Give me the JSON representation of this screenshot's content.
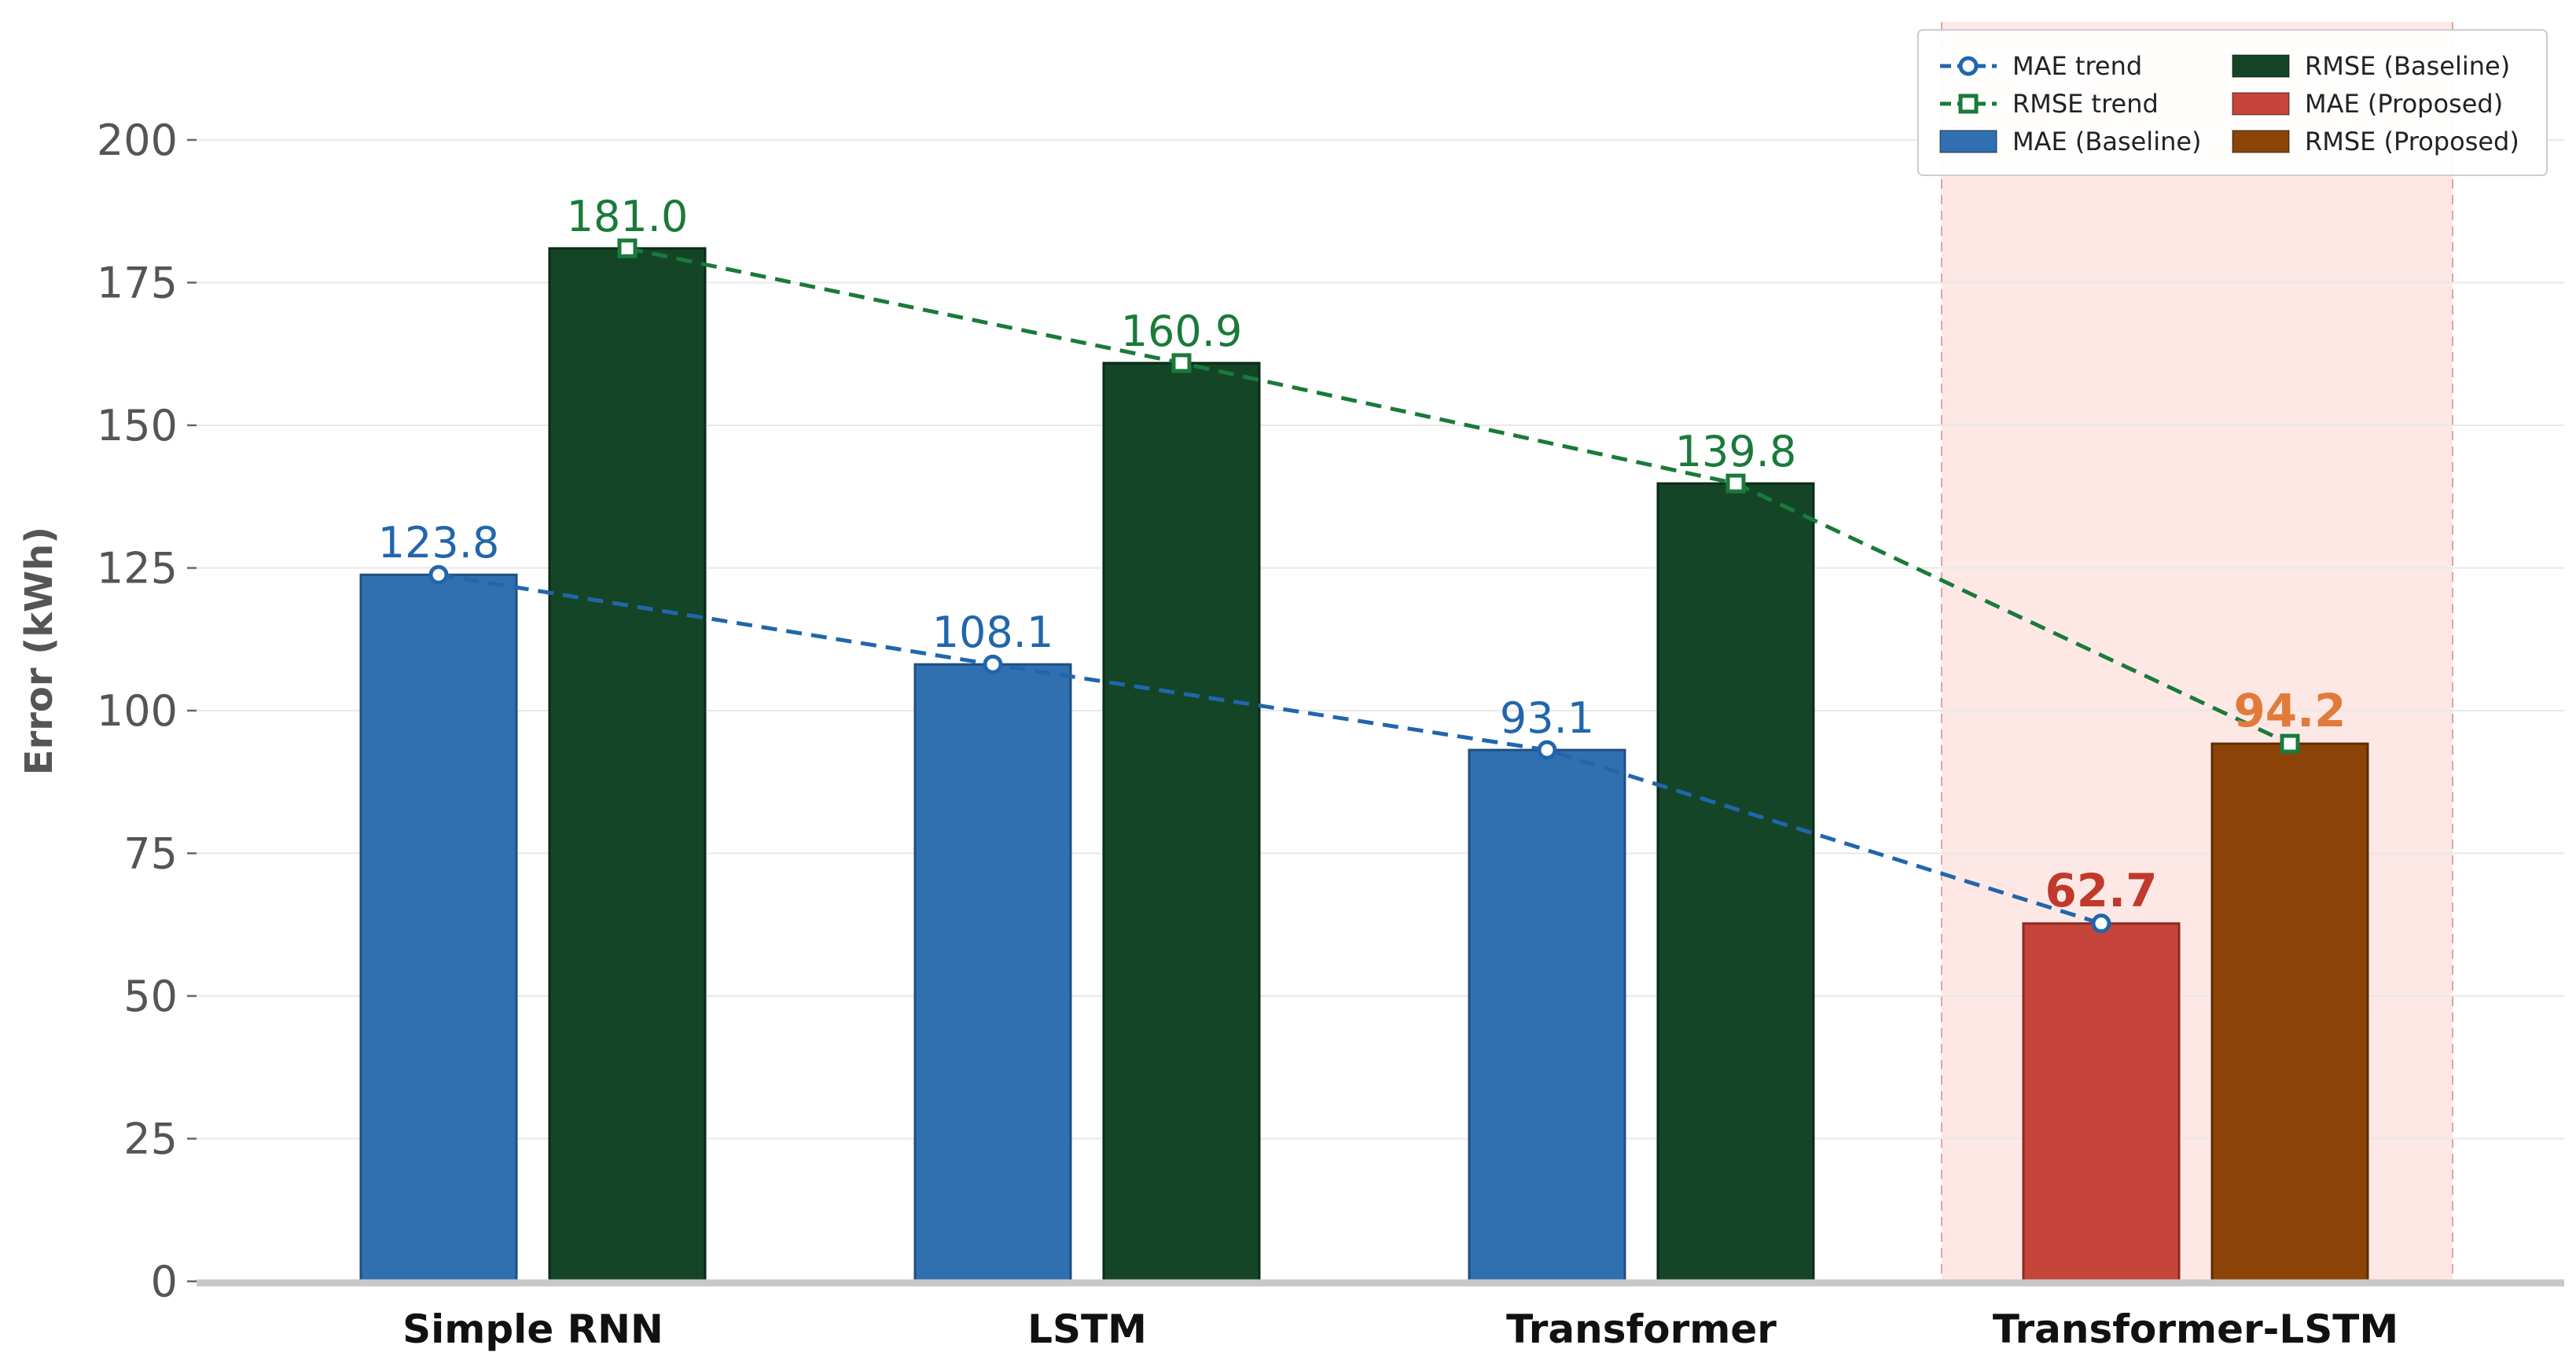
{
  "chart_data": {
    "type": "bar",
    "ylabel": "Error (kWh)",
    "xlabel": "",
    "ylim": [
      0,
      210
    ],
    "yticks": [
      0,
      25,
      50,
      75,
      100,
      125,
      150,
      175,
      200
    ],
    "grid": "horizontal",
    "legend_position": "top-right",
    "categories": [
      "Simple RNN",
      "LSTM",
      "Transformer",
      "Transformer-LSTM"
    ],
    "highlighted_category": "Transformer-LSTM",
    "series": [
      {
        "name": "MAE",
        "values": [
          123.8,
          108.1,
          93.1,
          62.7
        ],
        "labels": [
          "123.8",
          "108.1",
          "93.1",
          "62.7"
        ],
        "color_baseline": "#3070b0",
        "color_proposed": "#c5453a",
        "label_color_baseline": "#2166ac",
        "label_color_proposed": "#c0392b"
      },
      {
        "name": "RMSE",
        "values": [
          181.0,
          160.9,
          139.8,
          94.2
        ],
        "labels": [
          "181.0",
          "160.9",
          "139.8",
          "94.2"
        ],
        "color_baseline": "#144527",
        "color_proposed": "#8b4308",
        "label_color_baseline": "#1a7a3a",
        "label_color_proposed": "#e07b39"
      }
    ],
    "trend_lines": [
      {
        "name": "MAE trend",
        "series": "MAE",
        "color": "#2166ac",
        "marker": "circle"
      },
      {
        "name": "RMSE trend",
        "series": "RMSE",
        "color": "#1a7a3a",
        "marker": "square"
      }
    ],
    "legend": [
      {
        "label": "MAE trend",
        "kind": "line",
        "marker": "circle",
        "color": "#2166ac"
      },
      {
        "label": "RMSE trend",
        "kind": "line",
        "marker": "square",
        "color": "#1a7a3a"
      },
      {
        "label": "MAE (Baseline)",
        "kind": "patch",
        "color": "#3070b0"
      },
      {
        "label": "RMSE (Baseline)",
        "kind": "patch",
        "color": "#144527"
      },
      {
        "label": "MAE (Proposed)",
        "kind": "patch",
        "color": "#c5453a"
      },
      {
        "label": "RMSE (Proposed)",
        "kind": "patch",
        "color": "#8b4308"
      }
    ],
    "highlight_color": "#fde8e6"
  }
}
